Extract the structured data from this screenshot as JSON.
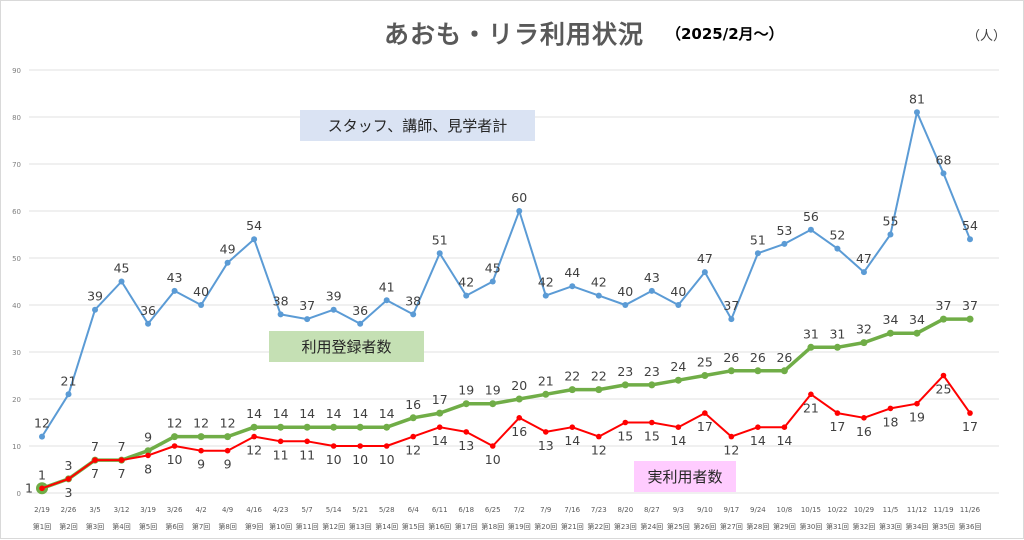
{
  "title": "あおも・リラ利用状況",
  "subtitle": "（2025/2月～）",
  "unit_label": "（人）",
  "chart_data": {
    "type": "line",
    "title": "あおも・リラ利用状況 （2025/2月～）",
    "xlabel": "",
    "ylabel": "（人）",
    "ylim": [
      0,
      90
    ],
    "yticks": [
      0,
      10,
      20,
      30,
      40,
      50,
      60,
      70,
      80,
      90
    ],
    "grid": true,
    "categories": [
      "2/19",
      "2/26",
      "3/5",
      "3/12",
      "3/19",
      "3/26",
      "4/2",
      "4/9",
      "4/16",
      "4/23",
      "5/7",
      "5/14",
      "5/21",
      "5/28",
      "6/4",
      "6/11",
      "6/18",
      "6/25",
      "7/2",
      "7/9",
      "7/16",
      "7/23",
      "8/20",
      "8/27",
      "9/3",
      "9/10",
      "9/17",
      "9/24",
      "10/8",
      "10/15",
      "10/22",
      "10/29",
      "11/5",
      "11/12",
      "11/19",
      "11/26"
    ],
    "sessions": [
      "第1回",
      "第2回",
      "第3回",
      "第4回",
      "第5回",
      "第6回",
      "第7回",
      "第8回",
      "第9回",
      "第10回",
      "第11回",
      "第12回",
      "第13回",
      "第14回",
      "第15回",
      "第16回",
      "第17回",
      "第18回",
      "第19回",
      "第20回",
      "第21回",
      "第22回",
      "第23回",
      "第24回",
      "第25回",
      "第26回",
      "第27回",
      "第28回",
      "第29回",
      "第30回",
      "第31回",
      "第32回",
      "第33回",
      "第34回",
      "第35回",
      "第36回"
    ],
    "series": [
      {
        "name": "スタッフ、講師、見学者計",
        "color": "#5b9bd5",
        "values": [
          12,
          21,
          39,
          45,
          36,
          43,
          40,
          49,
          54,
          38,
          37,
          39,
          36,
          41,
          38,
          51,
          42,
          45,
          60,
          42,
          44,
          42,
          40,
          43,
          40,
          47,
          37,
          51,
          53,
          56,
          52,
          47,
          55,
          81,
          68,
          54
        ]
      },
      {
        "name": "利用登録者数",
        "color": "#70ad47",
        "values": [
          1,
          3,
          7,
          7,
          9,
          12,
          12,
          12,
          14,
          14,
          14,
          14,
          14,
          14,
          16,
          17,
          19,
          19,
          20,
          21,
          22,
          22,
          23,
          23,
          24,
          25,
          26,
          26,
          26,
          31,
          31,
          32,
          34,
          34,
          37,
          37
        ]
      },
      {
        "name": "実利用者数",
        "color": "#ff0000",
        "values": [
          1,
          3,
          7,
          7,
          8,
          10,
          9,
          9,
          12,
          11,
          11,
          10,
          10,
          10,
          12,
          14,
          13,
          10,
          16,
          13,
          14,
          12,
          15,
          15,
          14,
          17,
          12,
          14,
          14,
          21,
          17,
          16,
          18,
          19,
          25,
          17
        ]
      }
    ],
    "legend": [
      {
        "label": "スタッフ、講師、見学者計",
        "background": "#dae3f3",
        "placement": "upper-left-center"
      },
      {
        "label": "利用登録者数",
        "background": "#c5e0b4",
        "placement": "center-left"
      },
      {
        "label": "実利用者数",
        "background": "#ffccff",
        "placement": "bottom-center"
      }
    ]
  }
}
